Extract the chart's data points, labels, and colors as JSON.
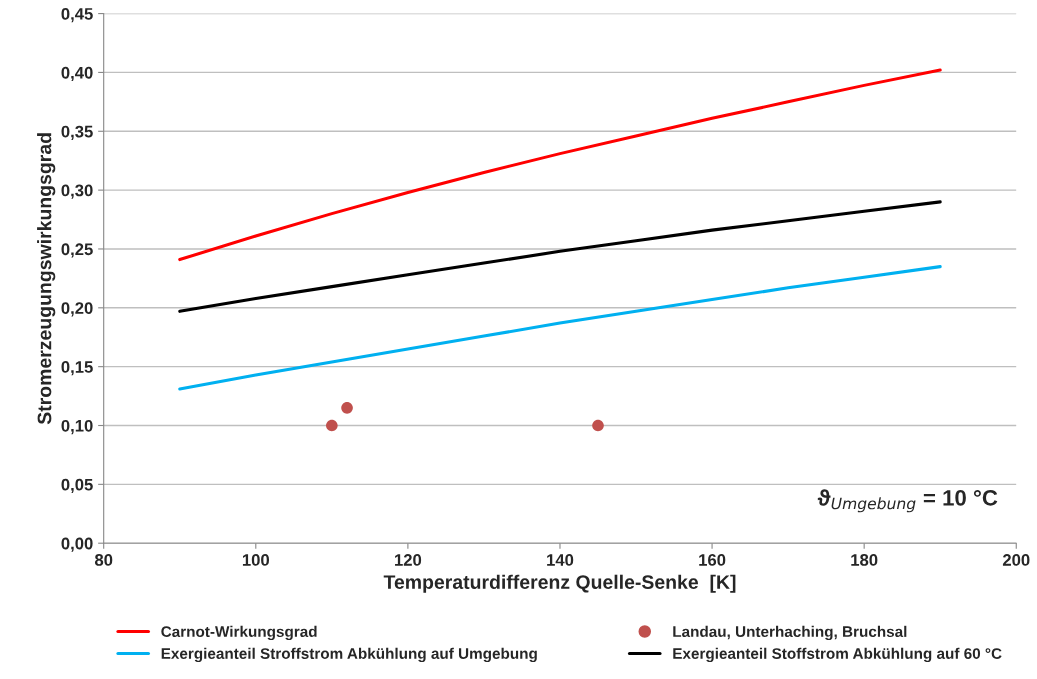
{
  "chart_data": {
    "type": "line",
    "xlabel": "Temperaturdifferenz Quelle-Senke  [K]",
    "ylabel": "Stromerzeugungswirkungsgrad",
    "x": [
      90,
      100,
      110,
      120,
      130,
      140,
      150,
      160,
      170,
      180,
      190
    ],
    "series": [
      {
        "name": "Carnot-Wirkungsgrad",
        "color": "#ff0000",
        "values": [
          0.241,
          0.261,
          0.28,
          0.298,
          0.315,
          0.331,
          0.346,
          0.361,
          0.375,
          0.389,
          0.402
        ]
      },
      {
        "name": "Landau, Unterhaching, Bruchsal",
        "type": "scatter",
        "color": "#c0504d",
        "x": [
          110,
          112,
          145
        ],
        "values": [
          0.1,
          0.115,
          0.1
        ]
      },
      {
        "name": "Exergieanteil Stroffstrom Abkühlung auf Umgebung",
        "color": "#00b0f0",
        "values": [
          0.131,
          0.143,
          0.154,
          0.165,
          0.176,
          0.187,
          0.197,
          0.207,
          0.217,
          0.226,
          0.235
        ]
      },
      {
        "name": "Exergieanteil Stoffstrom Abkühlung auf 60 °C",
        "color": "#000000",
        "values": [
          0.197,
          0.208,
          0.218,
          0.228,
          0.238,
          0.248,
          0.257,
          0.266,
          0.274,
          0.282,
          0.29
        ]
      }
    ],
    "xlim": [
      80,
      200
    ],
    "xticks": [
      80,
      100,
      120,
      140,
      160,
      180,
      200
    ],
    "ylim": [
      0,
      0.45
    ],
    "yticks": [
      {
        "value": 0,
        "label": "0,00"
      },
      {
        "value": 0.05,
        "label": "0,05"
      },
      {
        "value": 0.1,
        "label": "0,10"
      },
      {
        "value": 0.15,
        "label": "0,15"
      },
      {
        "value": 0.2,
        "label": "0,20"
      },
      {
        "value": 0.25,
        "label": "0,25"
      },
      {
        "value": 0.3,
        "label": "0,30"
      },
      {
        "value": 0.35,
        "label": "0,35"
      },
      {
        "value": 0.4,
        "label": "0,40"
      },
      {
        "value": 0.45,
        "label": "0,45"
      }
    ],
    "grid": "y",
    "legend": "bottom",
    "annotations": [
      "ϑ$_{Umgebung}$ = 10 °C"
    ]
  }
}
